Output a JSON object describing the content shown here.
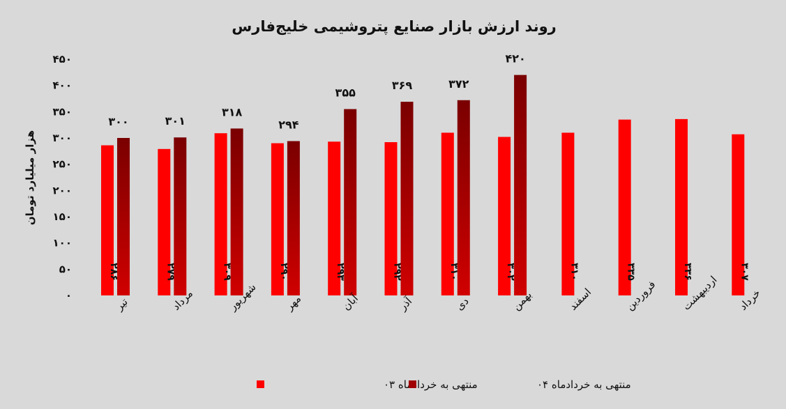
{
  "chart_data": {
    "type": "bar",
    "title": "روند ارزش بازار صنایع پتروشیمی خلیج‌فارس",
    "ylabel": "هزار میلیارد تومان",
    "xlabel": "",
    "ylim": [
      0,
      450
    ],
    "yticks": [
      0,
      50,
      100,
      150,
      200,
      250,
      300,
      350,
      400,
      450
    ],
    "ytick_labels": [
      "۰",
      "۵۰",
      "۱۰۰",
      "۱۵۰",
      "۲۰۰",
      "۲۵۰",
      "۳۰۰",
      "۳۵۰",
      "۴۰۰",
      "۴۵۰"
    ],
    "grid": false,
    "legend_position": "bottom",
    "categories": [
      "تیر",
      "مرداد",
      "شهریور",
      "مهر",
      "آبان",
      "آذر",
      "دی",
      "بهمن",
      "اسفند",
      "فروردین",
      "اردیبهشت",
      "خرداد"
    ],
    "series": [
      {
        "name": "منتهی به خردادماه ۰۳",
        "color": "#ff0000",
        "values": [
          286,
          279,
          309,
          290,
          293,
          292,
          310,
          302,
          310,
          335,
          336,
          307
        ],
        "labels": [
          "۲۸۶",
          "۲۷۹",
          "۳۰۹",
          "۲۹۰",
          "۲۹۳",
          "۲۹۲",
          "۳۱۰",
          "۳۰۲",
          "۳۱۰",
          "۳۳۵",
          "۳۳۶",
          "۳۰۷"
        ]
      },
      {
        "name": "منتهی به خردادماه ۰۴",
        "color": "#c00000",
        "color_dark": "#7a0000",
        "values": [
          300,
          301,
          318,
          294,
          355,
          369,
          372,
          420,
          null,
          null,
          null,
          null
        ],
        "labels": [
          "۳۰۰",
          "۳۰۱",
          "۳۱۸",
          "۲۹۴",
          "۳۵۵",
          "۳۶۹",
          "۳۷۲",
          "۴۲۰",
          null,
          null,
          null,
          null
        ]
      }
    ]
  }
}
